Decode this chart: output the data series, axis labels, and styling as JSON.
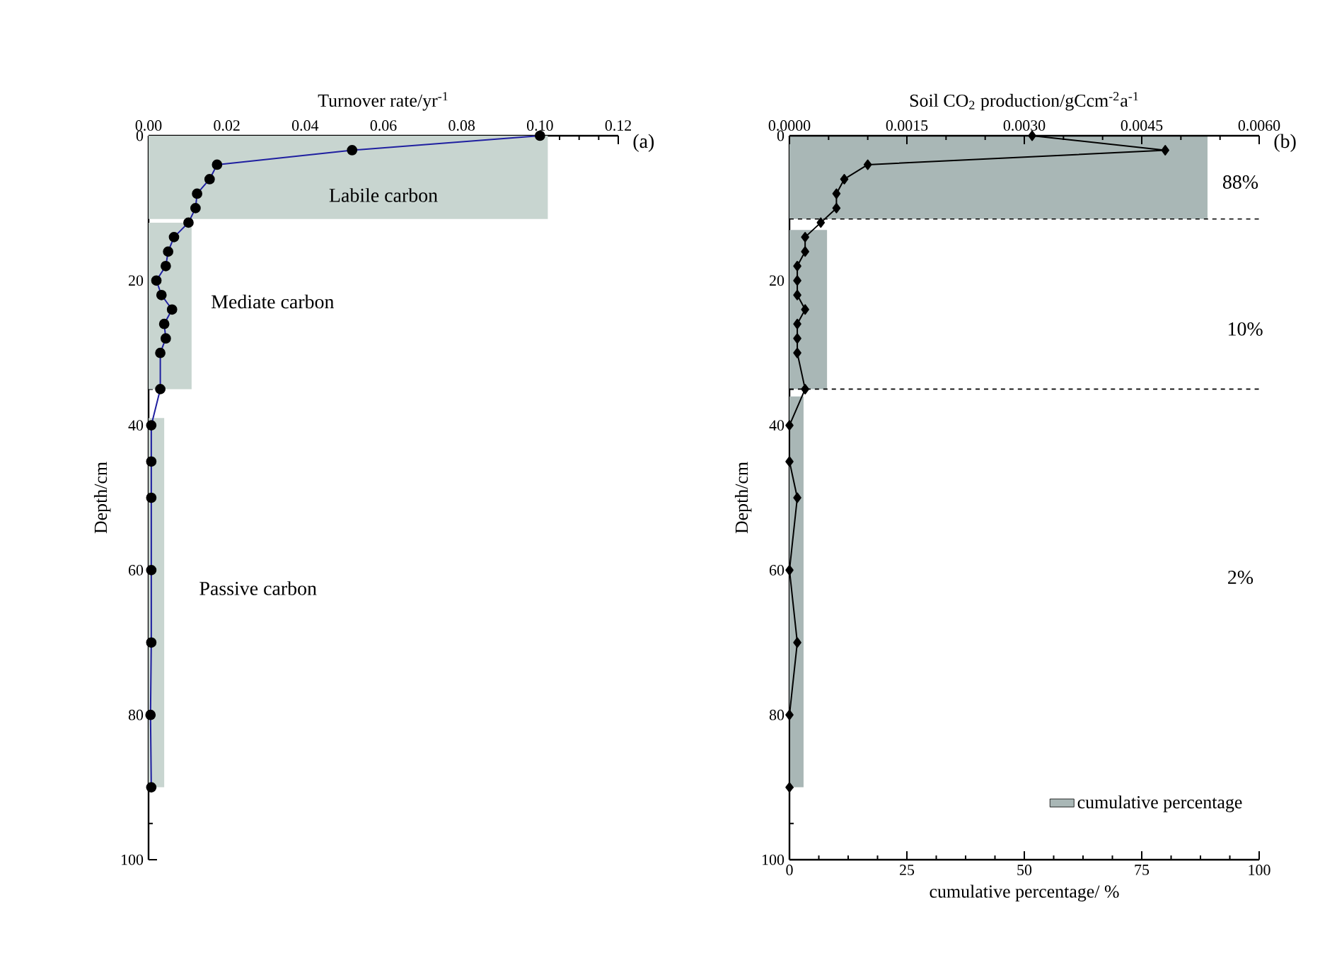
{
  "chart_data": [
    {
      "type": "line",
      "orientation": "horizontal",
      "xlabel": "Turnover rate/yr$^{-1}$",
      "ylabel": "Depth/cm",
      "xlim": [
        0,
        0.12
      ],
      "xticks": [
        {
          "value": 0,
          "label": "0.00"
        },
        {
          "value": 0.02,
          "label": "0.02"
        },
        {
          "value": 0.04,
          "label": "0.04"
        },
        {
          "value": 0.06,
          "label": "0.06"
        },
        {
          "value": 0.08,
          "label": "0.08"
        },
        {
          "value": 0.1,
          "label": "0.10"
        },
        {
          "value": 0.12,
          "label": "0.12"
        }
      ],
      "ylim": [
        100,
        0
      ],
      "yticks": [
        0,
        20,
        40,
        60,
        80,
        100
      ],
      "legend": false,
      "series": [
        {
          "type": "area",
          "color": "#c8d5d0",
          "x": [
            0,
            11.5,
            11.5,
            12,
            12,
            35,
            35,
            39,
            39,
            90
          ],
          "values": [
            0.102,
            0.102,
            0,
            0,
            0.011,
            0.011,
            0,
            0,
            0.004,
            0.004
          ]
        },
        {
          "marker": "circle",
          "color": "#1f1fa0",
          "x": [
            0,
            2,
            4,
            6,
            8,
            10,
            12,
            14,
            16,
            18,
            20,
            22,
            24,
            26,
            28,
            30,
            35,
            40,
            45,
            50,
            60,
            70,
            80,
            90
          ],
          "values": [
            0.1,
            0.052,
            0.0175,
            0.0156,
            0.0124,
            0.012,
            0.0102,
            0.0065,
            0.005,
            0.0044,
            0.002,
            0.0033,
            0.006,
            0.004,
            0.0044,
            0.003,
            0.003,
            0.0007,
            0.0007,
            0.0007,
            0.0007,
            0.0007,
            0.0005,
            0.0007
          ]
        }
      ],
      "annotations": [
        "Labile carbon",
        "Mediate carbon",
        "Passive carbon",
        "(a)"
      ]
    },
    {
      "type": "line",
      "orientation": "horizontal",
      "xlabel": "cumulative percentage/ %",
      "x2label": "Soil CO$_{2}$ production/gCcm$^{-2}$a$^{-1}$",
      "ylabel": "Depth/cm",
      "xlim": [
        0,
        100
      ],
      "xticks": [
        0,
        25,
        50,
        75,
        100
      ],
      "x2lim": [
        0,
        0.006
      ],
      "x2ticks": [
        {
          "value": 0,
          "label": "0.0000"
        },
        {
          "value": 0.0015,
          "label": "0.0015"
        },
        {
          "value": 0.003,
          "label": "0.0030"
        },
        {
          "value": 0.0045,
          "label": "0.0045"
        },
        {
          "value": 0.006,
          "label": "0.0060"
        }
      ],
      "ylim": [
        100,
        0
      ],
      "yticks": [
        0,
        20,
        40,
        60,
        80,
        100
      ],
      "legend": "bottom right",
      "series": [
        {
          "type": "area",
          "name": "cumulative percentage",
          "color": "#a9b7b6",
          "x": [
            0,
            11.5,
            11.5,
            13,
            13,
            35,
            35,
            36,
            36,
            90
          ],
          "values": [
            89,
            89,
            0,
            0,
            8,
            8,
            0,
            0,
            3,
            3
          ]
        },
        {
          "marker": "diamond",
          "axis": "x2",
          "color": "#000000",
          "x": [
            0,
            2,
            4,
            6,
            8,
            10,
            12,
            14,
            16,
            18,
            20,
            22,
            24,
            26,
            28,
            30,
            35,
            40,
            45,
            50,
            60,
            70,
            80,
            90
          ],
          "values": [
            0.0031,
            0.0048,
            0.001,
            0.0007,
            0.0006,
            0.0006,
            0.0004,
            0.0002,
            0.0002,
            0.0001,
            0.0001,
            0.0001,
            0.0002,
            0.0001,
            0.0001,
            0.0001,
            0.0002,
            0,
            0,
            0.0001,
            0,
            0.0001,
            0,
            0
          ]
        }
      ],
      "ref_lines": [
        {
          "axis": "y",
          "value": 11.5,
          "line_style": "dashed"
        },
        {
          "axis": "y",
          "value": 35,
          "line_style": "dashed"
        }
      ],
      "annotations": [
        "88%",
        "10%",
        "2%",
        "(b)"
      ]
    }
  ]
}
